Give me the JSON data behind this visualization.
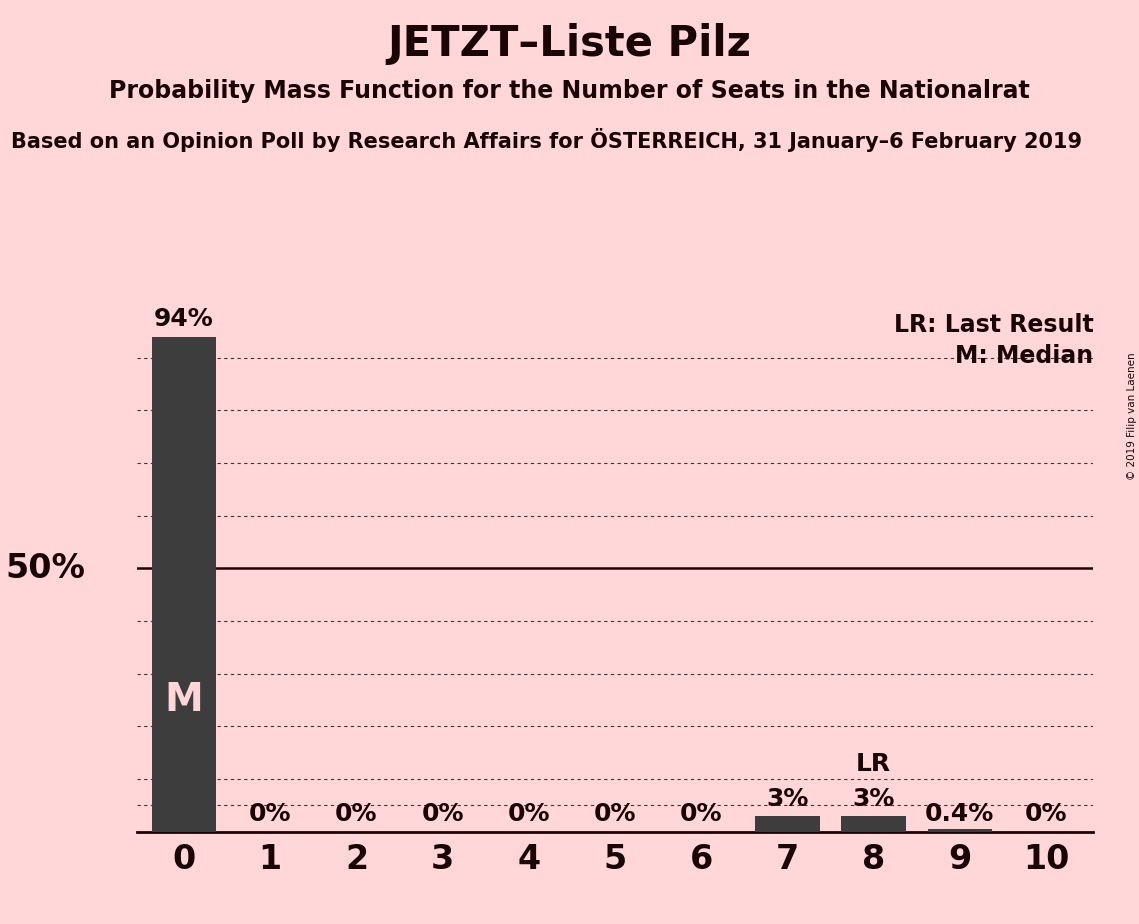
{
  "title": "JETZT–Liste Pilz",
  "subtitle": "Probability Mass Function for the Number of Seats in the Nationalrat",
  "source_line": "Based on an Opinion Poll by Research Affairs for ÖSTERREICH, 31 January–6 February 2019",
  "copyright": "© 2019 Filip van Laenen",
  "categories": [
    0,
    1,
    2,
    3,
    4,
    5,
    6,
    7,
    8,
    9,
    10
  ],
  "values": [
    0.94,
    0.0,
    0.0,
    0.0,
    0.0,
    0.0,
    0.0,
    0.03,
    0.03,
    0.004,
    0.0
  ],
  "labels": [
    "94%",
    "0%",
    "0%",
    "0%",
    "0%",
    "0%",
    "0%",
    "3%",
    "3%",
    "0.4%",
    "0%"
  ],
  "bar_color": "#3d3d3d",
  "background_color": "#ffd7d9",
  "text_color": "#1a0505",
  "median_bar": 0,
  "median_label": "M",
  "lr_bar": 8,
  "lr_label": "LR",
  "fifty_pct_line": 0.5,
  "ylim": [
    0,
    1.0
  ],
  "dotted_grid_levels": [
    0.9,
    0.8,
    0.7,
    0.6,
    0.4,
    0.3,
    0.2,
    0.1,
    0.05
  ],
  "title_fontsize": 30,
  "subtitle_fontsize": 17,
  "source_fontsize": 15,
  "bar_label_fontsize": 18,
  "axis_tick_fontsize": 24,
  "fifty_pct_fontsize": 24,
  "legend_fontsize": 17,
  "m_label_fontsize": 28
}
